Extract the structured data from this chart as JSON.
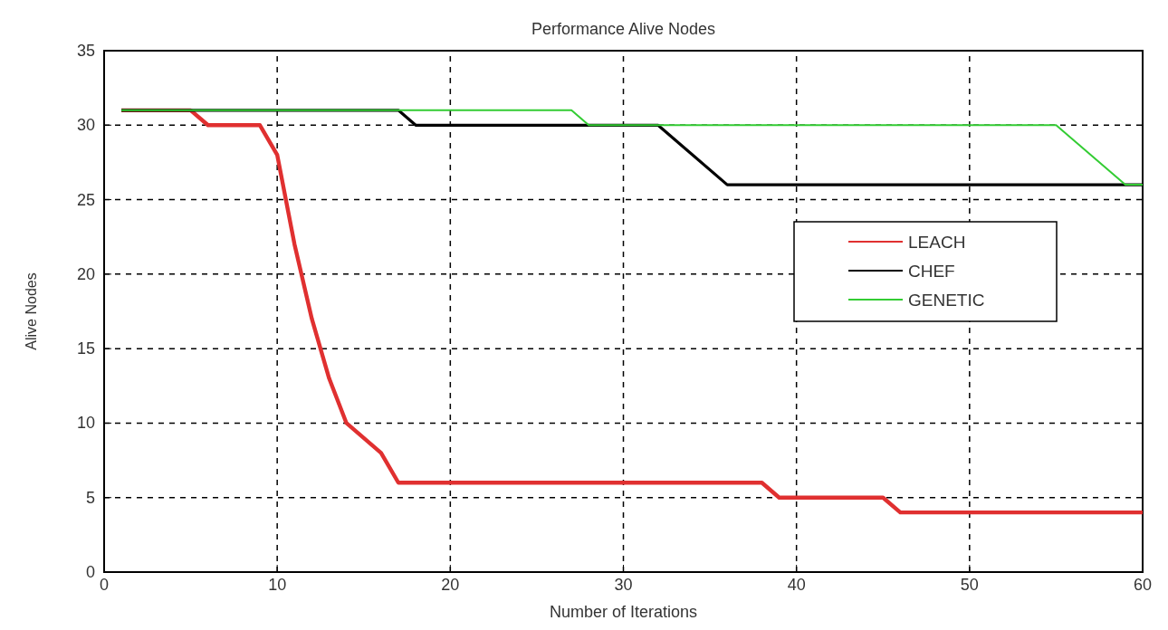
{
  "chart_data": {
    "type": "line",
    "title": "Performance Alive Nodes",
    "xlabel": "Number of Iterations",
    "ylabel": "Alive Nodes",
    "xlim": [
      0,
      60
    ],
    "ylim": [
      0,
      35
    ],
    "xticks": [
      0,
      10,
      20,
      30,
      40,
      50,
      60
    ],
    "yticks": [
      0,
      5,
      10,
      15,
      20,
      25,
      30,
      35
    ],
    "grid": true,
    "legend": "right",
    "line_style": "solid",
    "series": [
      {
        "name": "LEACH",
        "color": "#e03030",
        "x": [
          1,
          5,
          6,
          9,
          10,
          11,
          12,
          13,
          14,
          15,
          16,
          17,
          38,
          39,
          45,
          46,
          60
        ],
        "values": [
          31,
          31,
          30,
          30,
          28,
          22,
          17,
          13,
          10,
          9,
          8,
          6,
          6,
          5,
          5,
          4,
          4
        ]
      },
      {
        "name": "CHEF",
        "color": "#000000",
        "x": [
          1,
          17,
          18,
          32,
          36,
          60
        ],
        "values": [
          31,
          31,
          30,
          30,
          26,
          26
        ]
      },
      {
        "name": "GENETIC",
        "color": "#33cc33",
        "x": [
          1,
          27,
          28,
          55,
          59,
          60
        ],
        "values": [
          31,
          31,
          30,
          30,
          26,
          26
        ]
      }
    ]
  }
}
